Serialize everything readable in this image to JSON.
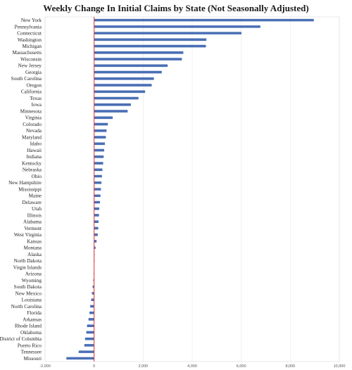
{
  "chart_data": {
    "type": "bar",
    "orientation": "horizontal",
    "title": "Weekly Change In Initial Claims by State (Not Seasonally Adjusted)",
    "xlabel": "",
    "ylabel": "",
    "xlim": [
      -2000,
      10000
    ],
    "x_ticks": [
      "-2,000",
      "0",
      "2,000",
      "4,000",
      "6,000",
      "8,000",
      "10,000"
    ],
    "x_tick_values": [
      -2000,
      0,
      2000,
      4000,
      6000,
      8000,
      10000
    ],
    "grid": true,
    "legend": "none",
    "bar_color": "#4a6fb5",
    "zero_line_color": "#e03030",
    "categories": [
      "New York",
      "Pennsylvania",
      "Connecticut",
      "Washington",
      "Michigan",
      "Massachusetts",
      "Wisconsin",
      "New Jersey",
      "Georgia",
      "South Carolina",
      "Oregon",
      "California",
      "Texas",
      "Iowa",
      "Minnesota",
      "Virginia",
      "Colorado",
      "Nevada",
      "Maryland",
      "Idaho",
      "Hawaii",
      "Indiana",
      "Kentucky",
      "Nebraska",
      "Ohio",
      "New Hampshire",
      "Mississippi",
      "Maine",
      "Delaware",
      "Utah",
      "Illinois",
      "Alabama",
      "Vermont",
      "West Virginia",
      "Kansas",
      "Montana",
      "Alaska",
      "North Dakota",
      "Virgin Islands",
      "Arizona",
      "Wyoming",
      "South Dakota",
      "New Mexico",
      "Louisiana",
      "North Carolina",
      "Florida",
      "Arkansas",
      "Rhode Island",
      "Oklahoma",
      "District of Columbia",
      "Puerto Rico",
      "Tennessee",
      "Missouri"
    ],
    "values": [
      8960,
      6780,
      6010,
      4580,
      4560,
      3640,
      3580,
      3000,
      2760,
      2440,
      2350,
      2080,
      1810,
      1500,
      1370,
      760,
      560,
      510,
      480,
      440,
      410,
      390,
      370,
      340,
      320,
      300,
      280,
      260,
      240,
      210,
      200,
      180,
      170,
      150,
      100,
      60,
      10,
      5,
      0,
      -15,
      -30,
      -60,
      -90,
      -120,
      -160,
      -190,
      -230,
      -290,
      -320,
      -370,
      -400,
      -630,
      -1130
    ]
  }
}
